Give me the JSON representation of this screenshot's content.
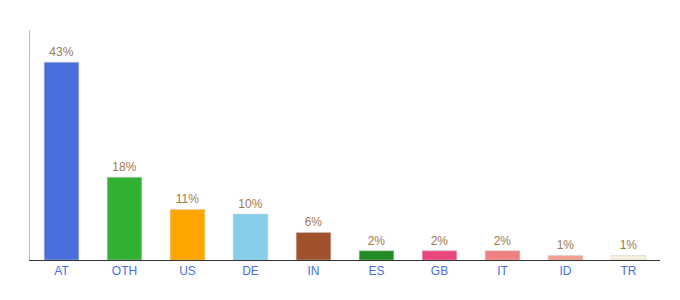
{
  "chart_data": {
    "type": "bar",
    "categories": [
      "AT",
      "OTH",
      "US",
      "DE",
      "IN",
      "ES",
      "GB",
      "IT",
      "ID",
      "TR"
    ],
    "values": [
      43,
      18,
      11,
      10,
      6,
      2,
      2,
      2,
      1,
      1
    ],
    "value_labels": [
      "43%",
      "18%",
      "11%",
      "10%",
      "6%",
      "2%",
      "2%",
      "2%",
      "1%",
      "1%"
    ],
    "colors": [
      "#4a6fdc",
      "#32b032",
      "#ffa500",
      "#87ceeb",
      "#a0522d",
      "#228b22",
      "#e8457a",
      "#f08080",
      "#f4a090",
      "#f5f0e0"
    ],
    "ylim": [
      0,
      50
    ],
    "data_labels": true,
    "tick_labels": "x",
    "grid": false
  }
}
